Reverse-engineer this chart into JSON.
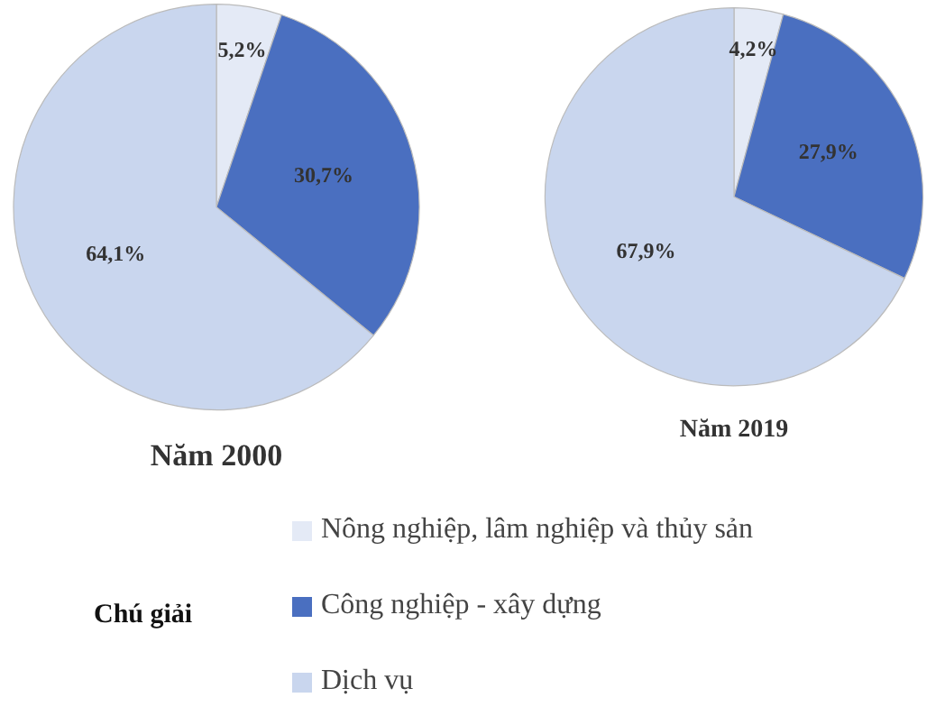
{
  "chart_data": [
    {
      "type": "pie",
      "title": "Năm 2000",
      "categories": [
        "Nông nghiệp, lâm nghiệp và thủy sản",
        "Công nghiệp - xây dựng",
        "Dịch vụ"
      ],
      "values": [
        5.2,
        30.7,
        64.1
      ],
      "value_labels": [
        "5,2%",
        "30,7%",
        "64,1%"
      ],
      "colors": [
        "#e4eaf6",
        "#4a6fc0",
        "#c9d6ee"
      ],
      "legend": "bottom",
      "legend_title": "Chú giải"
    },
    {
      "type": "pie",
      "title": "Năm 2019",
      "categories": [
        null,
        null,
        null
      ],
      "values": [
        4.2,
        27.9,
        67.9
      ],
      "value_labels": [
        "4,2%",
        "27,9%",
        "67,9%"
      ],
      "colors": [
        "#e4eaf6",
        "#4a6fc0",
        "#c9d6ee"
      ]
    }
  ]
}
